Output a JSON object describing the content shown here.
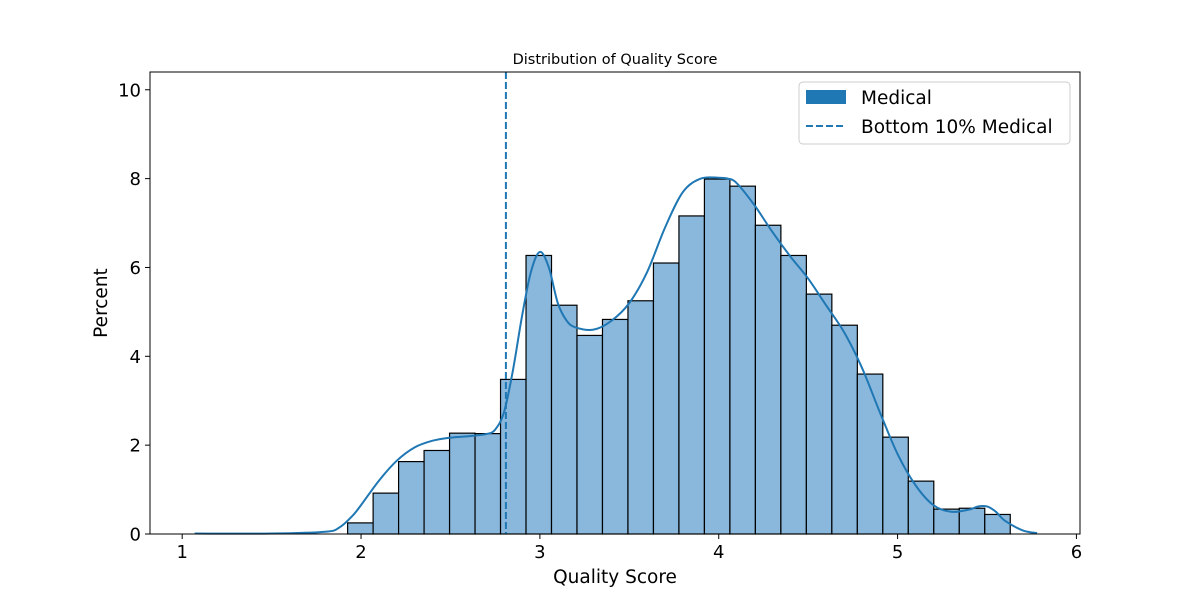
{
  "chart_data": {
    "type": "bar",
    "title": "Distribution of Quality Score",
    "xlabel": "Quality Score",
    "ylabel": "Percent",
    "xlim": [
      0.82,
      6.02
    ],
    "ylim": [
      0,
      10.4
    ],
    "xticks": [
      1,
      2,
      3,
      4,
      5,
      6
    ],
    "yticks": [
      0,
      2,
      4,
      6,
      8,
      10
    ],
    "grid": false,
    "legend_position": "top-right",
    "colors": {
      "bar_fill": "#8ab8dc",
      "bar_edge": "#000000",
      "line": "#1f77b4",
      "legend_patch": "#1f77b4"
    },
    "series": [
      {
        "name": "Medical",
        "kind": "histogram",
        "bin_start": 1.925,
        "bin_width": 0.1425,
        "values": [
          0.25,
          0.92,
          1.63,
          1.88,
          2.27,
          2.26,
          3.48,
          6.27,
          5.15,
          4.47,
          4.83,
          5.25,
          6.1,
          7.16,
          7.99,
          7.83,
          6.95,
          6.27,
          5.4,
          4.7,
          3.6,
          2.18,
          1.19,
          0.56,
          0.58,
          0.44
        ]
      },
      {
        "name": "Medical KDE",
        "kind": "kde",
        "x": [
          1.07,
          1.5,
          1.8,
          1.88,
          1.95,
          2.0,
          2.1,
          2.2,
          2.3,
          2.4,
          2.5,
          2.6,
          2.7,
          2.75,
          2.8,
          2.85,
          2.9,
          2.95,
          3.0,
          3.05,
          3.1,
          3.15,
          3.2,
          3.3,
          3.4,
          3.5,
          3.6,
          3.7,
          3.8,
          3.9,
          4.0,
          4.05,
          4.1,
          4.2,
          4.3,
          4.4,
          4.5,
          4.6,
          4.7,
          4.8,
          4.9,
          5.0,
          5.1,
          5.2,
          5.3,
          5.4,
          5.45,
          5.5,
          5.55,
          5.6,
          5.7,
          5.78
        ],
        "y": [
          0.01,
          0.01,
          0.05,
          0.15,
          0.4,
          0.65,
          1.2,
          1.65,
          1.95,
          2.1,
          2.17,
          2.2,
          2.25,
          2.35,
          2.75,
          3.7,
          4.9,
          5.9,
          6.35,
          6.0,
          5.2,
          4.8,
          4.65,
          4.6,
          4.8,
          5.2,
          5.9,
          6.9,
          7.7,
          8.0,
          8.02,
          8.0,
          7.9,
          7.4,
          6.8,
          6.25,
          5.75,
          5.15,
          4.55,
          3.75,
          2.75,
          1.8,
          1.1,
          0.65,
          0.5,
          0.55,
          0.62,
          0.62,
          0.5,
          0.3,
          0.08,
          0.02
        ]
      }
    ],
    "threshold": {
      "name": "Bottom 10% Medical",
      "x": 2.81
    },
    "legend": [
      {
        "label": "Medical",
        "marker": "patch"
      },
      {
        "label": "Bottom 10% Medical",
        "marker": "dashed-line"
      }
    ]
  }
}
